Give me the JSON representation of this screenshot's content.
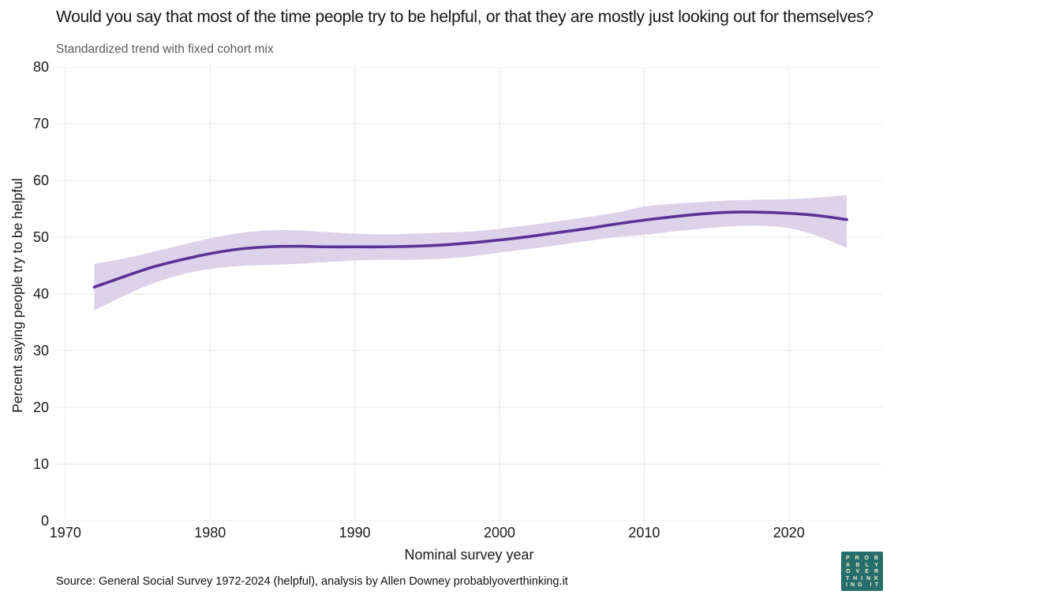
{
  "title": "Would you say that most of the time people try to be helpful, or that they are mostly just looking out for themselves?",
  "subtitle": "Standardized trend with fixed cohort mix",
  "source": "Source: General Social Survey 1972-2024 (helpful), analysis by Allen Downey probablyoverthinking.it",
  "logo": {
    "lines": [
      "PROB",
      "ABLY",
      "OVER",
      "THINK",
      "ING IT"
    ],
    "bg_color": "#266e6b",
    "text_color": "#f2eec9"
  },
  "colors": {
    "line": "#5b3296",
    "band": "#dcd2ea",
    "grid": "#e7e7e7",
    "title_text": "#161616",
    "subtitle_text": "#595959"
  },
  "chart_data": {
    "type": "line",
    "title": "Would you say that most of the time people try to be helpful, or that they are mostly just looking out for themselves?",
    "subtitle": "Standardized trend with fixed cohort mix",
    "xlabel": "Nominal survey year",
    "ylabel": "Percent saying people try to be helpful",
    "xlim": [
      1969.3,
      2026.5
    ],
    "ylim": [
      0,
      80
    ],
    "xticks": [
      1970,
      1980,
      1990,
      2000,
      2010,
      2020
    ],
    "yticks": [
      0,
      10,
      20,
      30,
      40,
      50,
      60,
      70,
      80
    ],
    "grid": true,
    "legend": "none",
    "series": [
      {
        "name": "Standardized trend with fixed cohort mix",
        "color": "#5b3296",
        "band_color": "#dcd2ea",
        "x": [
          1972,
          1974,
          1976,
          1978,
          1980,
          1982,
          1984,
          1986,
          1988,
          1990,
          1992,
          1994,
          1996,
          1998,
          2000,
          2002,
          2004,
          2006,
          2008,
          2010,
          2012,
          2014,
          2016,
          2018,
          2020,
          2022,
          2024
        ],
        "y": [
          41.2,
          43.0,
          44.7,
          46.0,
          47.1,
          47.9,
          48.3,
          48.4,
          48.3,
          48.3,
          48.3,
          48.4,
          48.6,
          49.0,
          49.5,
          50.1,
          50.8,
          51.5,
          52.3,
          53.0,
          53.6,
          54.1,
          54.4,
          54.4,
          54.2,
          53.8,
          53.1
        ],
        "lower": [
          37.1,
          39.6,
          41.8,
          43.4,
          44.4,
          44.9,
          45.1,
          45.3,
          45.6,
          45.9,
          46.0,
          46.0,
          46.2,
          46.6,
          47.3,
          47.9,
          48.6,
          49.3,
          50.0,
          50.4,
          51.0,
          51.5,
          51.9,
          52.0,
          51.6,
          50.2,
          48.1
        ],
        "upper": [
          45.3,
          46.2,
          47.4,
          48.6,
          49.8,
          50.7,
          51.2,
          51.2,
          50.9,
          50.6,
          50.5,
          50.6,
          50.8,
          51.0,
          51.5,
          52.1,
          52.8,
          53.5,
          54.3,
          55.4,
          55.9,
          56.2,
          56.5,
          56.6,
          56.7,
          57.0,
          57.4
        ]
      }
    ]
  }
}
